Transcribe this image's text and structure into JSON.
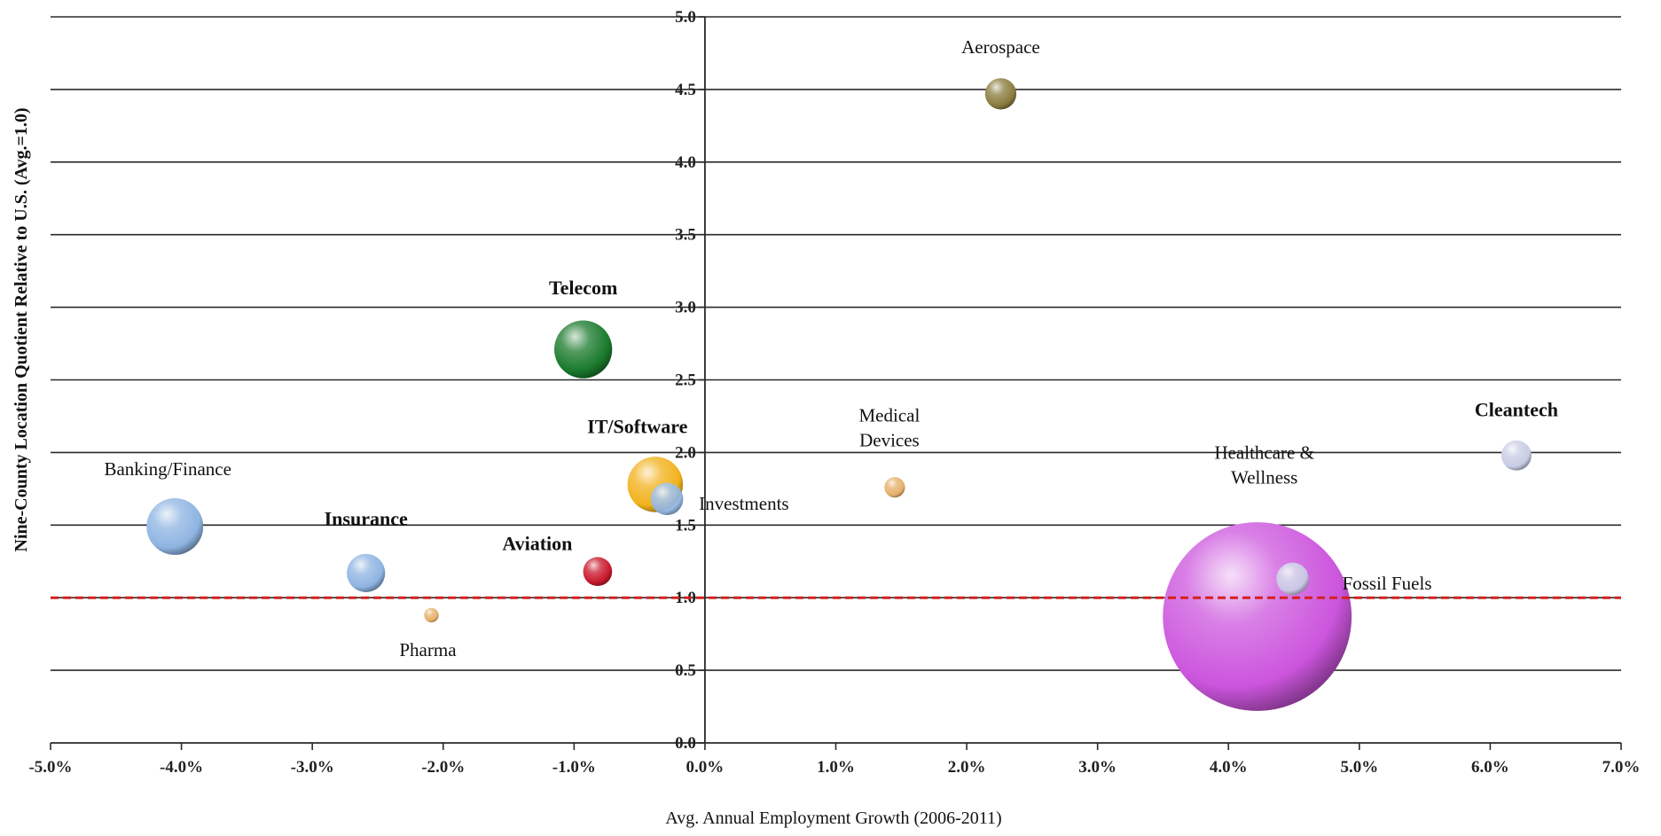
{
  "chart_data": {
    "type": "bubble",
    "xlabel": "Avg. Annual Employment Growth (2006-2011)",
    "ylabel": "Nine-County Location Quotient Relative to U.S. (Avg.=1.0)",
    "xlim": [
      -0.05,
      0.07
    ],
    "ylim": [
      0.0,
      5.0
    ],
    "x_ticks": [
      -0.05,
      -0.04,
      -0.03,
      -0.02,
      -0.01,
      0.0,
      0.01,
      0.02,
      0.03,
      0.04,
      0.05,
      0.06,
      0.07
    ],
    "x_tick_labels": [
      "-5.0%",
      "-4.0%",
      "-3.0%",
      "-2.0%",
      "-1.0%",
      "0.0%",
      "1.0%",
      "2.0%",
      "3.0%",
      "4.0%",
      "5.0%",
      "6.0%",
      "7.0%"
    ],
    "y_ticks": [
      0.0,
      0.5,
      1.0,
      1.5,
      2.0,
      2.5,
      3.0,
      3.5,
      4.0,
      4.5,
      5.0
    ],
    "y_tick_labels": [
      "0.0",
      "0.5",
      "1.0",
      "1.5",
      "2.0",
      "2.5",
      "3.0",
      "3.5",
      "4.0",
      "4.5",
      "5.0"
    ],
    "grid": "horizontal",
    "reference_line": {
      "y": 1.0,
      "style": "dashed",
      "color": "#d42020"
    },
    "series": [
      {
        "name": "Healthcare & Wellness",
        "label_lines": [
          "Healthcare &",
          "Wellness"
        ],
        "x": 0.0422,
        "y": 0.87,
        "size": 51,
        "color": "#cc55dd",
        "bold": false
      },
      {
        "name": "Fossil Fuels",
        "label_lines": [
          "Fossil Fuels"
        ],
        "x": 0.0449,
        "y": 1.13,
        "size": 1.5,
        "color": "#c8cce4",
        "bold": false
      },
      {
        "name": "Aerospace",
        "label_lines": [
          "Aerospace"
        ],
        "x": 0.0226,
        "y": 4.47,
        "size": 1.4,
        "color": "#8a7c3e",
        "bold": false
      },
      {
        "name": "Telecom",
        "label_lines": [
          "Telecom"
        ],
        "x": -0.0093,
        "y": 2.71,
        "size": 4.8,
        "color": "#1a7a2c",
        "bold": true
      },
      {
        "name": "IT/Software",
        "label_lines": [
          "IT/Software"
        ],
        "x": -0.0038,
        "y": 1.78,
        "size": 4.4,
        "color": "#f2b21c",
        "bold": true
      },
      {
        "name": "Investments",
        "label_lines": [
          "Investments"
        ],
        "x": -0.0029,
        "y": 1.68,
        "size": 1.5,
        "color": "#8eb4e2",
        "bold": false
      },
      {
        "name": "Banking/Finance",
        "label_lines": [
          "Banking/Finance"
        ],
        "x": -0.0405,
        "y": 1.49,
        "size": 4.6,
        "color": "#8eb4e2",
        "bold": false
      },
      {
        "name": "Insurance",
        "label_lines": [
          "Insurance"
        ],
        "x": -0.0259,
        "y": 1.17,
        "size": 2.1,
        "color": "#8eb4e2",
        "bold": true
      },
      {
        "name": "Aviation",
        "label_lines": [
          "Aviation"
        ],
        "x": -0.0082,
        "y": 1.18,
        "size": 1.2,
        "color": "#c8182c",
        "bold": true
      },
      {
        "name": "Pharma",
        "label_lines": [
          "Pharma"
        ],
        "x": -0.0209,
        "y": 0.88,
        "size": 0.3,
        "color": "#e6b06a",
        "bold": false
      },
      {
        "name": "Medical Devices",
        "label_lines": [
          "Medical",
          "Devices"
        ],
        "x": 0.0145,
        "y": 1.76,
        "size": 0.6,
        "color": "#e6b06a",
        "bold": false
      },
      {
        "name": "Cleantech",
        "label_lines": [
          "Cleantech"
        ],
        "x": 0.062,
        "y": 1.98,
        "size": 1.3,
        "color": "#c8cce4",
        "bold": true
      }
    ]
  }
}
